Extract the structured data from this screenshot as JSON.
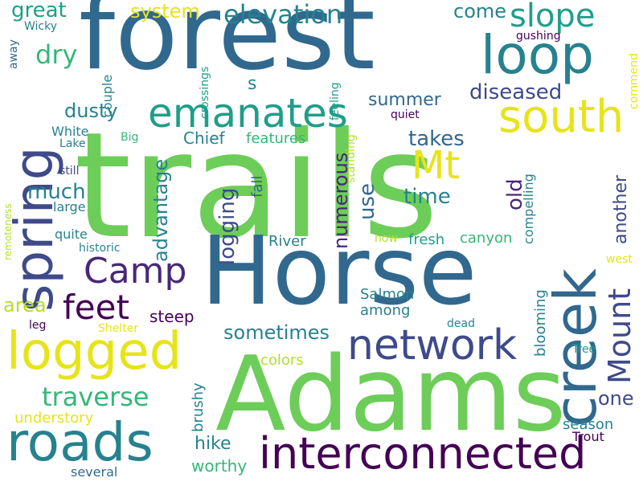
{
  "palette": {
    "dark_purple": "#440154",
    "purple": "#482878",
    "indigo": "#3e4a89",
    "blue": "#31688e",
    "teal": "#26828e",
    "green_teal": "#1f9e89",
    "green": "#35b779",
    "light_green": "#6dcd59",
    "yellow_green": "#b4de2c",
    "yellow": "#e6e419"
  },
  "words": [
    "trails",
    "forest",
    "Horse",
    "Adams",
    "creek",
    "spring",
    "loop",
    "logged",
    "roads",
    "interconnected",
    "network",
    "emanates",
    "south",
    "slope",
    "Mt",
    "Mount",
    "feet",
    "Camp",
    "elevation",
    "traverse",
    "numerous",
    "logging",
    "advantage",
    "dusty",
    "dry",
    "great",
    "system",
    "come",
    "diseased",
    "summer",
    "takes",
    "time",
    "use",
    "old",
    "another",
    "one",
    "sometimes",
    "much",
    "area",
    "steep",
    "hike",
    "worthy",
    "brushy",
    "understory",
    "Chief",
    "features",
    "fall",
    "canyon",
    "fresh",
    "River",
    "Salmon",
    "among",
    "blooming",
    "season",
    "Trout",
    "compelling",
    "standing",
    "quiet",
    "feeling",
    "crossings",
    "couple",
    "commend",
    "gushing",
    "White",
    "Lake",
    "Big",
    "large",
    "quite",
    "historic",
    "still",
    "remoteness",
    "Wicky",
    "away",
    "leg",
    "Shelter",
    "colors",
    "s",
    "now",
    "dead",
    "Tree",
    "west",
    "several"
  ]
}
